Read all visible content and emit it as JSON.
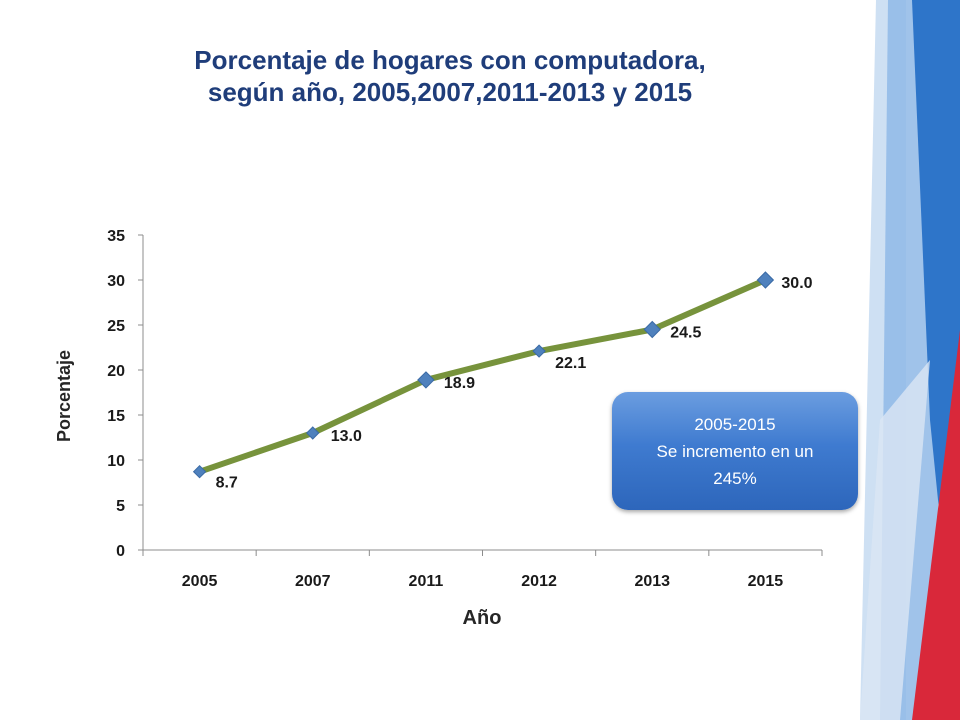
{
  "slide": {
    "title_line1": "Porcentaje de hogares con computadora,",
    "title_line2": "según año, 2005,2007,2011-2013 y 2015",
    "colors": {
      "title": "#1f3d7a",
      "line": "#77933c",
      "marker": "#4f81bd",
      "callout": "#3f7bd0",
      "accent_red": "#d9283a",
      "accent_blue": "#2e75c9"
    }
  },
  "callout": {
    "line1": "2005-2015",
    "line2": "Se incremento en un",
    "line3": "245%"
  },
  "chart_data": {
    "type": "line",
    "title": "",
    "xlabel": "Año",
    "ylabel": "Porcentaje",
    "categories": [
      "2005",
      "2007",
      "2011",
      "2012",
      "2013",
      "2015"
    ],
    "series": [
      {
        "values": [
          8.7,
          13.0,
          18.9,
          22.1,
          24.5,
          30.0
        ]
      }
    ],
    "data_labels": [
      "8.7",
      "13.0",
      "18.9",
      "22.1",
      "24.5",
      "30.0"
    ],
    "ylim": [
      0,
      35
    ],
    "yticks": [
      0,
      5,
      10,
      15,
      20,
      25,
      30,
      35
    ],
    "grid": false,
    "legend": "none"
  }
}
